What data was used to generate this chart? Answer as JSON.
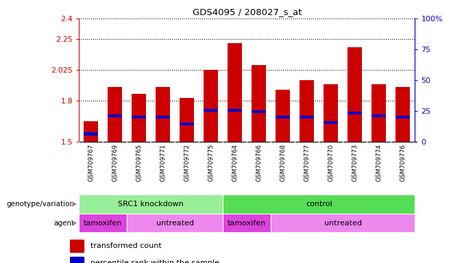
{
  "title": "GDS4095 / 208027_s_at",
  "samples": [
    "GSM709767",
    "GSM709769",
    "GSM709765",
    "GSM709771",
    "GSM709772",
    "GSM709775",
    "GSM709764",
    "GSM709766",
    "GSM709768",
    "GSM709777",
    "GSM709770",
    "GSM709773",
    "GSM709774",
    "GSM709776"
  ],
  "bar_values": [
    1.65,
    1.9,
    1.85,
    1.9,
    1.82,
    2.025,
    2.22,
    2.06,
    1.88,
    1.95,
    1.92,
    2.19,
    1.92,
    1.9
  ],
  "blue_marker_values": [
    1.56,
    1.69,
    1.68,
    1.68,
    1.63,
    1.73,
    1.73,
    1.72,
    1.68,
    1.68,
    1.64,
    1.71,
    1.69,
    1.68
  ],
  "bar_bottom": 1.5,
  "ylim": [
    1.5,
    2.4
  ],
  "yticks": [
    1.5,
    1.8,
    2.025,
    2.25,
    2.4
  ],
  "ytick_labels": [
    "1.5",
    "1.8",
    "2.025",
    "2.25",
    "2.4"
  ],
  "right_yticks": [
    0,
    25,
    50,
    75,
    100
  ],
  "right_ytick_labels": [
    "0",
    "25",
    "50",
    "75",
    "100%"
  ],
  "bar_color": "#cc0000",
  "blue_color": "#0000cc",
  "background_color": "#ffffff",
  "genotype_groups": [
    {
      "label": "SRC1 knockdown",
      "start": 0,
      "end": 6,
      "color": "#99ee99"
    },
    {
      "label": "control",
      "start": 6,
      "end": 14,
      "color": "#55dd55"
    }
  ],
  "agent_groups": [
    {
      "label": "tamoxifen",
      "start": 0,
      "end": 2,
      "color": "#dd44dd"
    },
    {
      "label": "untreated",
      "start": 2,
      "end": 6,
      "color": "#ee88ee"
    },
    {
      "label": "tamoxifen",
      "start": 6,
      "end": 8,
      "color": "#dd44dd"
    },
    {
      "label": "untreated",
      "start": 8,
      "end": 14,
      "color": "#ee88ee"
    }
  ],
  "legend_items": [
    {
      "label": "transformed count",
      "color": "#cc0000"
    },
    {
      "label": "percentile rank within the sample",
      "color": "#0000cc"
    }
  ],
  "grid_color": "#000000",
  "ylabel_color": "#cc0000",
  "ylabel2_color": "#0000cc",
  "xtick_bg": "#cccccc",
  "left_label_color": "#888888"
}
